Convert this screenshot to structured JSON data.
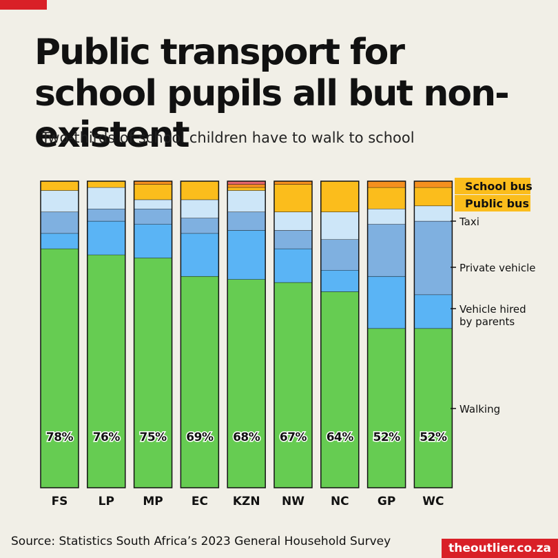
{
  "header": {
    "title": "Public transport for school pupils all but non-existent",
    "subtitle": "Two-thirds of school children have to walk to school"
  },
  "footer": {
    "source": "Source: Statistics South Africa’s 2023 General Household Survey",
    "brand": "theoutlier.co.za"
  },
  "chart_data": {
    "type": "bar",
    "stacked": true,
    "orientation": "vertical",
    "ylim": [
      0,
      100
    ],
    "grid": false,
    "legend": "right",
    "categories": [
      "FS",
      "LP",
      "MP",
      "EC",
      "KZN",
      "NW",
      "NC",
      "GP",
      "WC"
    ],
    "walking_labels": [
      "78%",
      "76%",
      "75%",
      "69%",
      "68%",
      "67%",
      "64%",
      "52%",
      "52%"
    ],
    "series": [
      {
        "name": "Walking",
        "color": "#66cc52",
        "values": [
          78,
          76,
          75,
          69,
          68,
          67,
          64,
          52,
          52
        ]
      },
      {
        "name": "Vehicle hired by parents",
        "color": "#5ab4f5",
        "values": [
          5,
          11,
          11,
          14,
          16,
          11,
          7,
          17,
          11
        ]
      },
      {
        "name": "Private vehicle",
        "color": "#7fb0e0",
        "values": [
          7,
          4,
          5,
          5,
          6,
          6,
          10,
          17,
          24
        ]
      },
      {
        "name": "Taxi",
        "color": "#cde6f8",
        "values": [
          7,
          7,
          3,
          6,
          7,
          6,
          9,
          5,
          5
        ]
      },
      {
        "name": "Public bus",
        "color": "#fbbd1c",
        "values": [
          3,
          2,
          5,
          6,
          1,
          9,
          10,
          7,
          6
        ]
      },
      {
        "name": "School bus",
        "color": "#f5901e",
        "values": [
          0,
          0,
          1,
          0,
          1,
          1,
          0,
          2,
          2
        ]
      },
      {
        "name": "Other",
        "color": "#e6666b",
        "values": [
          0,
          0,
          0,
          0,
          1,
          0,
          0,
          0,
          0
        ]
      }
    ],
    "legend_entries": [
      {
        "label": "School bus",
        "highlighted": true
      },
      {
        "label": "Public bus",
        "highlighted": true
      },
      {
        "label": "Taxi",
        "highlighted": false
      },
      {
        "label": "Private vehicle",
        "highlighted": false
      },
      {
        "label": "Vehicle hired by parents",
        "highlighted": false
      },
      {
        "label": "Walking",
        "highlighted": false
      }
    ],
    "colors": {
      "background": "#f1efe7",
      "highlight": "#fbbd1c",
      "accent": "#d92027",
      "bar_outline": "#111111"
    }
  }
}
